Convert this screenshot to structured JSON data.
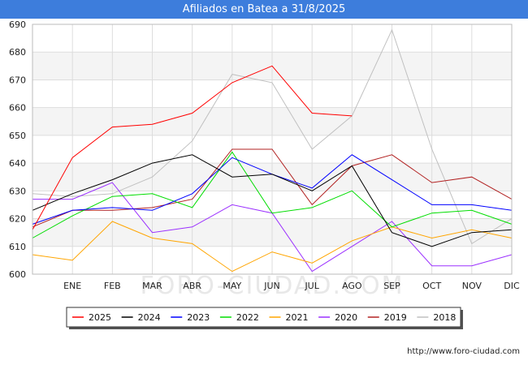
{
  "header": {
    "title": "Afiliados en Batea a 31/8/2025"
  },
  "footer": {
    "source": "http://www.foro-ciudad.com"
  },
  "watermark": "FORO-CIUDAD.COM",
  "chart_data": {
    "type": "line",
    "title": "Afiliados en Batea a 31/8/2025",
    "xlabel": "",
    "ylabel": "",
    "categories": [
      "",
      "ENE",
      "FEB",
      "MAR",
      "ABR",
      "MAY",
      "JUN",
      "JUL",
      "AGO",
      "SEP",
      "OCT",
      "NOV",
      "DIC"
    ],
    "ylim": [
      600,
      690
    ],
    "yticks": [
      600,
      610,
      620,
      630,
      640,
      650,
      660,
      670,
      680,
      690
    ],
    "grid": true,
    "legend_position": "bottom",
    "series": [
      {
        "name": "2025",
        "color": "#ff0000",
        "values": [
          616,
          642,
          653,
          654,
          658,
          669,
          675,
          658,
          657,
          null,
          null,
          null,
          null
        ]
      },
      {
        "name": "2024",
        "color": "#000000",
        "values": [
          623,
          629,
          634,
          640,
          643,
          635,
          636,
          630,
          639,
          615,
          610,
          615,
          616
        ]
      },
      {
        "name": "2023",
        "color": "#0000ff",
        "values": [
          618,
          623,
          624,
          623,
          629,
          642,
          636,
          631,
          643,
          634,
          625,
          625,
          623
        ]
      },
      {
        "name": "2022",
        "color": "#00dd00",
        "values": [
          613,
          621,
          628,
          629,
          624,
          644,
          622,
          624,
          630,
          617,
          622,
          623,
          618
        ]
      },
      {
        "name": "2021",
        "color": "#ffa500",
        "values": [
          607,
          605,
          619,
          613,
          611,
          601,
          608,
          604,
          612,
          617,
          613,
          616,
          613
        ]
      },
      {
        "name": "2020",
        "color": "#9b30ff",
        "values": [
          627,
          627,
          633,
          615,
          617,
          625,
          622,
          601,
          610,
          619,
          603,
          603,
          607
        ]
      },
      {
        "name": "2019",
        "color": "#b22222",
        "values": [
          617,
          623,
          623,
          624,
          627,
          645,
          645,
          625,
          639,
          643,
          633,
          635,
          627
        ]
      },
      {
        "name": "2018",
        "color": "#c0c0c0",
        "values": [
          629,
          628,
          629,
          635,
          648,
          672,
          669,
          645,
          657,
          688,
          645,
          611,
          620
        ]
      }
    ]
  }
}
